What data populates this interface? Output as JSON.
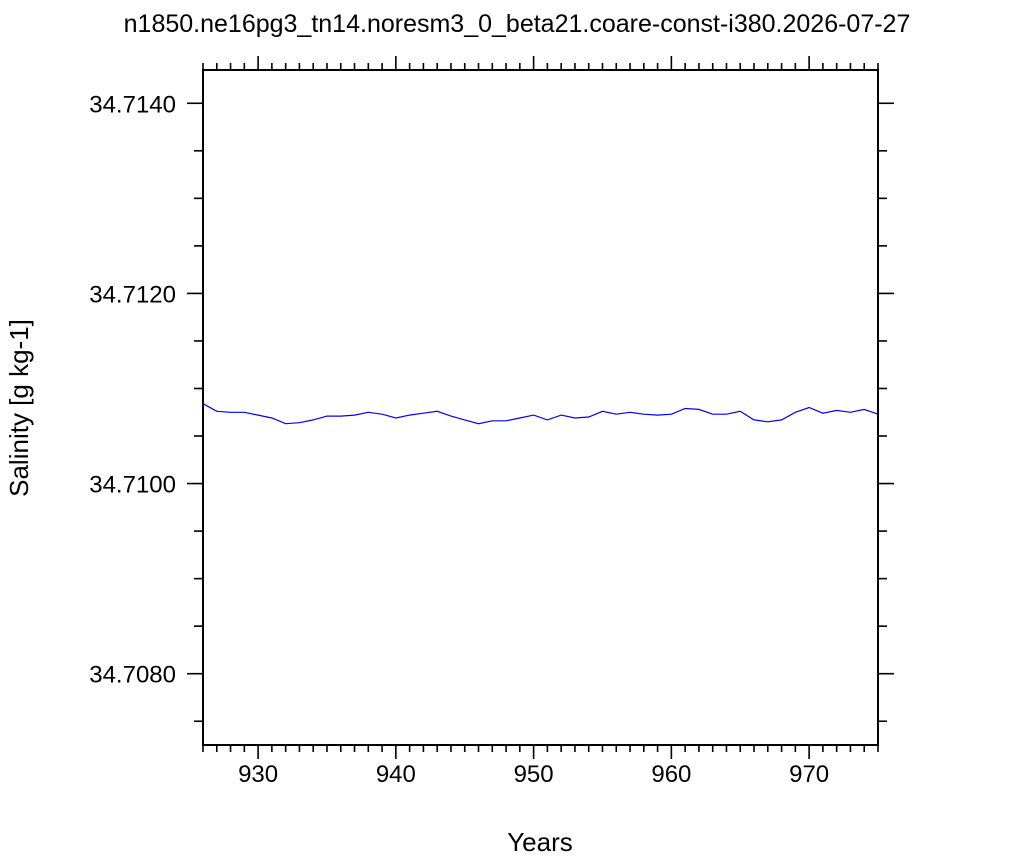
{
  "chart_data": {
    "type": "line",
    "title": "n1850.ne16pg3_tn14.noresm3_0_beta21.coare-const-i380.2026-07-27",
    "xlabel": "Years",
    "ylabel": "Salinity [g kg-1]",
    "xlim": [
      926,
      975
    ],
    "ylim": [
      34.70725,
      34.71435
    ],
    "x_ticks": [
      930,
      940,
      950,
      960,
      970
    ],
    "x_tick_labels": [
      "930",
      "940",
      "950",
      "960",
      "970"
    ],
    "y_ticks": [
      34.708,
      34.71,
      34.712,
      34.714
    ],
    "y_tick_labels": [
      "34.7080",
      "34.7100",
      "34.7120",
      "34.7140"
    ],
    "grid": false,
    "legend": "none",
    "series": [
      {
        "color": "#0000ff",
        "x": [
          926,
          927,
          928,
          929,
          930,
          931,
          932,
          933,
          934,
          935,
          936,
          937,
          938,
          939,
          940,
          941,
          942,
          943,
          944,
          945,
          946,
          947,
          948,
          949,
          950,
          951,
          952,
          953,
          954,
          955,
          956,
          957,
          958,
          959,
          960,
          961,
          962,
          963,
          964,
          965,
          966,
          967,
          968,
          969,
          970,
          971,
          972,
          973,
          974,
          975
        ],
        "values": [
          34.71084,
          34.71076,
          34.71075,
          34.71075,
          34.71072,
          34.71069,
          34.71063,
          34.71064,
          34.71067,
          34.71071,
          34.71071,
          34.71072,
          34.71075,
          34.71073,
          34.71069,
          34.71072,
          34.71074,
          34.71076,
          34.71071,
          34.71067,
          34.71063,
          34.71066,
          34.71066,
          34.71069,
          34.71072,
          34.71067,
          34.71072,
          34.71069,
          34.7107,
          34.71076,
          34.71073,
          34.71075,
          34.71073,
          34.71072,
          34.71073,
          34.71079,
          34.71078,
          34.71073,
          34.71073,
          34.71076,
          34.71067,
          34.71065,
          34.71067,
          34.71075,
          34.7108,
          34.71074,
          34.71077,
          34.71075,
          34.71078,
          34.71073
        ]
      }
    ]
  }
}
